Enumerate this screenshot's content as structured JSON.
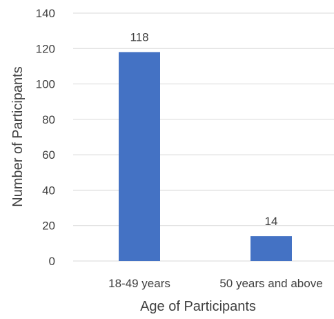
{
  "chart_data": {
    "type": "bar",
    "title": "",
    "xlabel": "Age of Participants",
    "ylabel": "Number of Participants",
    "categories": [
      "18-49 years",
      "50 years and above"
    ],
    "values": [
      118,
      14
    ],
    "data_labels": [
      "118",
      "14"
    ],
    "ylim": [
      0,
      140
    ],
    "yticks": [
      0,
      20,
      40,
      60,
      80,
      100,
      120,
      140
    ],
    "grid": true,
    "legend": "none",
    "bar_color": "#4472c4"
  }
}
